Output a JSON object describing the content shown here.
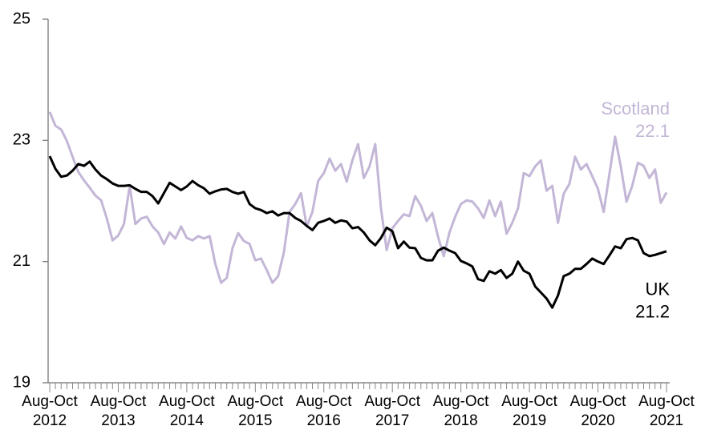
{
  "chart_data": {
    "type": "line",
    "categories": [
      "Aug-Oct 2012",
      null,
      null,
      null,
      null,
      null,
      null,
      null,
      null,
      null,
      null,
      null,
      "Aug-Oct 2013",
      null,
      null,
      null,
      null,
      null,
      null,
      null,
      null,
      null,
      null,
      null,
      "Aug-Oct 2014",
      null,
      null,
      null,
      null,
      null,
      null,
      null,
      null,
      null,
      null,
      null,
      "Aug-Oct 2015",
      null,
      null,
      null,
      null,
      null,
      null,
      null,
      null,
      null,
      null,
      null,
      "Aug-Oct 2016",
      null,
      null,
      null,
      null,
      null,
      null,
      null,
      null,
      null,
      null,
      null,
      "Aug-Oct 2017",
      null,
      null,
      null,
      null,
      null,
      null,
      null,
      null,
      null,
      null,
      null,
      "Aug-Oct 2018",
      null,
      null,
      null,
      null,
      null,
      null,
      null,
      null,
      null,
      null,
      null,
      "Aug-Oct 2019",
      null,
      null,
      null,
      null,
      null,
      null,
      null,
      null,
      null,
      null,
      null,
      "Aug-Oct 2020",
      null,
      null,
      null,
      null,
      null,
      null,
      null,
      null,
      null,
      null,
      null,
      "Aug-Oct 2021"
    ],
    "series": [
      {
        "name": "Scotland",
        "color": "#c3b6d6",
        "values": [
          23.47,
          23.24,
          23.18,
          22.99,
          22.73,
          22.48,
          22.34,
          22.22,
          22.09,
          22.01,
          21.71,
          21.35,
          21.43,
          21.62,
          22.25,
          21.62,
          21.71,
          21.74,
          21.58,
          21.48,
          21.29,
          21.48,
          21.38,
          21.58,
          21.39,
          21.35,
          21.42,
          21.38,
          21.42,
          20.96,
          20.65,
          20.73,
          21.22,
          21.47,
          21.34,
          21.29,
          21.02,
          21.05,
          20.86,
          20.65,
          20.76,
          21.15,
          21.82,
          21.95,
          22.13,
          21.58,
          21.82,
          22.33,
          22.46,
          22.7,
          22.5,
          22.61,
          22.32,
          22.67,
          22.94,
          22.38,
          22.57,
          22.94,
          21.88,
          21.19,
          21.55,
          21.67,
          21.78,
          21.75,
          22.08,
          21.92,
          21.67,
          21.8,
          21.41,
          21.09,
          21.48,
          21.74,
          21.95,
          22.01,
          21.99,
          21.88,
          21.72,
          22.01,
          21.75,
          21.99,
          21.46,
          21.64,
          21.88,
          22.46,
          22.41,
          22.57,
          22.67,
          22.17,
          22.25,
          21.64,
          22.12,
          22.28,
          22.73,
          22.52,
          22.61,
          22.41,
          22.2,
          21.82,
          22.44,
          23.06,
          22.57,
          21.99,
          22.25,
          22.63,
          22.58,
          22.38,
          22.52,
          21.97,
          22.14
        ],
        "value_labels": [
          null,
          null,
          null,
          null,
          null,
          null,
          null,
          null,
          null,
          null,
          null,
          null,
          null,
          null,
          null,
          null,
          null,
          null,
          null,
          null,
          null,
          null,
          null,
          null,
          null,
          null,
          null,
          null,
          null,
          null,
          null,
          null,
          null,
          null,
          null,
          null,
          null,
          null,
          null,
          null,
          null,
          null,
          null,
          null,
          null,
          null,
          null,
          null,
          null,
          null,
          null,
          null,
          null,
          null,
          null,
          null,
          null,
          null,
          null,
          null,
          null,
          null,
          null,
          null,
          null,
          null,
          null,
          null,
          null,
          null,
          null,
          null,
          null,
          null,
          null,
          null,
          null,
          null,
          null,
          null,
          null,
          null,
          null,
          null,
          null,
          null,
          null,
          null,
          null,
          null,
          null,
          null,
          null,
          null,
          null,
          null,
          null,
          null,
          null,
          null,
          null,
          null,
          null,
          null,
          null,
          null,
          null,
          null,
          "22.1"
        ]
      },
      {
        "name": "UK",
        "color": "#000000",
        "values": [
          22.74,
          22.53,
          22.4,
          22.42,
          22.5,
          22.61,
          22.58,
          22.65,
          22.52,
          22.42,
          22.36,
          22.29,
          22.25,
          22.25,
          22.26,
          22.2,
          22.15,
          22.15,
          22.08,
          21.96,
          22.13,
          22.3,
          22.24,
          22.18,
          22.24,
          22.33,
          22.26,
          22.21,
          22.12,
          22.16,
          22.19,
          22.2,
          22.15,
          22.12,
          22.15,
          21.95,
          21.88,
          21.85,
          21.8,
          21.83,
          21.76,
          21.8,
          21.8,
          21.72,
          21.67,
          21.59,
          21.52,
          21.64,
          21.67,
          21.71,
          21.64,
          21.68,
          21.66,
          21.55,
          21.57,
          21.48,
          21.35,
          21.27,
          21.39,
          21.56,
          21.5,
          21.22,
          21.33,
          21.23,
          21.22,
          21.06,
          21.02,
          21.02,
          21.18,
          21.23,
          21.18,
          21.14,
          21.01,
          20.97,
          20.92,
          20.71,
          20.68,
          20.84,
          20.8,
          20.86,
          20.73,
          20.8,
          21.0,
          20.85,
          20.8,
          20.59,
          20.49,
          20.39,
          20.24,
          20.44,
          20.76,
          20.8,
          20.88,
          20.88,
          20.96,
          21.05,
          21.0,
          20.96,
          21.1,
          21.25,
          21.22,
          21.37,
          21.39,
          21.35,
          21.14,
          21.09,
          21.11,
          21.14,
          21.17
        ],
        "value_labels": [
          null,
          null,
          null,
          null,
          null,
          null,
          null,
          null,
          null,
          null,
          null,
          null,
          null,
          null,
          null,
          null,
          null,
          null,
          null,
          null,
          null,
          null,
          null,
          null,
          null,
          null,
          null,
          null,
          null,
          null,
          null,
          null,
          null,
          null,
          null,
          null,
          null,
          null,
          null,
          null,
          null,
          null,
          null,
          null,
          null,
          null,
          null,
          null,
          null,
          null,
          null,
          null,
          null,
          null,
          null,
          null,
          null,
          null,
          null,
          null,
          null,
          null,
          null,
          null,
          null,
          null,
          null,
          null,
          null,
          null,
          null,
          null,
          null,
          null,
          null,
          null,
          null,
          null,
          null,
          null,
          null,
          null,
          null,
          null,
          null,
          null,
          null,
          null,
          null,
          null,
          null,
          null,
          null,
          null,
          null,
          null,
          null,
          null,
          null,
          null,
          null,
          null,
          null,
          null,
          null,
          null,
          null,
          null,
          "21.2"
        ]
      }
    ],
    "ylim": [
      19,
      25
    ],
    "yticks": [
      19,
      21,
      23,
      25
    ],
    "grid": false
  }
}
